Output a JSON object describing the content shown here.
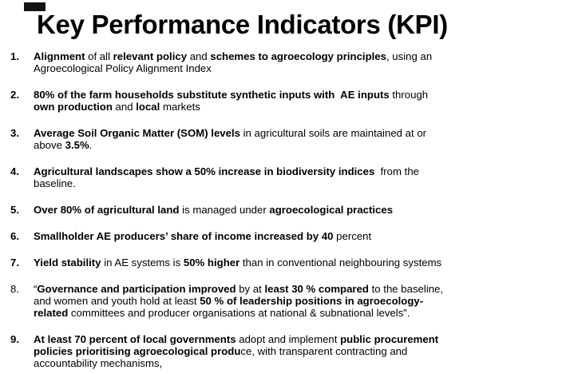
{
  "title": "Key Performance Indicators (KPI)",
  "corner_mark_color": "#141414",
  "text_color": "#000000",
  "background_color": "#ffffff",
  "list": {
    "items": [
      {
        "number": "1.",
        "number_bold": true,
        "segments": [
          {
            "text": "Alignment",
            "bold": true
          },
          {
            "text": " of all "
          },
          {
            "text": "relevant policy",
            "bold": true
          },
          {
            "text": " and "
          },
          {
            "text": "schemes to agroecology principles",
            "bold": true
          },
          {
            "text": ", using an\nAgroecological Policy Alignment Index"
          }
        ]
      },
      {
        "number": "2.",
        "number_bold": true,
        "segments": [
          {
            "text": "80% of the farm households substitute synthetic inputs with  AE inputs",
            "bold": true
          },
          {
            "text": " through\n"
          },
          {
            "text": "own production",
            "bold": true
          },
          {
            "text": " and "
          },
          {
            "text": "local",
            "bold": true
          },
          {
            "text": " markets"
          }
        ]
      },
      {
        "number": "3.",
        "number_bold": true,
        "segments": [
          {
            "text": "Average Soil Organic Matter (SOM) levels",
            "bold": true
          },
          {
            "text": " in agricultural soils are maintained at or\nabove "
          },
          {
            "text": "3.5%",
            "bold": true
          },
          {
            "text": "."
          }
        ]
      },
      {
        "number": "4.",
        "number_bold": true,
        "segments": [
          {
            "text": "Agricultural landscapes show a 50% increase in biodiversity indices",
            "bold": true
          },
          {
            "text": "  from the\nbaseline."
          }
        ]
      },
      {
        "number": "5.",
        "number_bold": true,
        "segments": [
          {
            "text": "Over 80% of agricultural land",
            "bold": true
          },
          {
            "text": " is managed under "
          },
          {
            "text": "agroecological practices",
            "bold": true
          }
        ]
      },
      {
        "number": "6.",
        "number_bold": true,
        "segments": [
          {
            "text": "Smallholder AE producers’ share of income increased by 40",
            "bold": true
          },
          {
            "text": " percent"
          }
        ]
      },
      {
        "number": "7.",
        "number_bold": true,
        "segments": [
          {
            "text": "Yield stability",
            "bold": true
          },
          {
            "text": " in AE systems is "
          },
          {
            "text": "50% higher",
            "bold": true
          },
          {
            "text": " than in conventional neighbouring systems"
          }
        ]
      },
      {
        "number": "8.",
        "number_bold": false,
        "segments": [
          {
            "text": "“"
          },
          {
            "text": "Governance and participation improved",
            "bold": true
          },
          {
            "text": " by at "
          },
          {
            "text": "least 30 % compared",
            "bold": true
          },
          {
            "text": " to the baseline,\nand women and youth hold at least "
          },
          {
            "text": "50 % of leadership positions in agroecology-\nrelated",
            "bold": true
          },
          {
            "text": " committees and producer organisations at national & subnational levels”."
          }
        ]
      },
      {
        "number": "9.",
        "number_bold": true,
        "segments": [
          {
            "text": "At least 70 percent of local governments",
            "bold": true
          },
          {
            "text": " adopt and implement "
          },
          {
            "text": "public procurement\npolicies prioritising agroecological produ",
            "bold": true
          },
          {
            "text": "ce, with transparent contracting and\naccountability mechanisms,"
          }
        ]
      }
    ]
  }
}
